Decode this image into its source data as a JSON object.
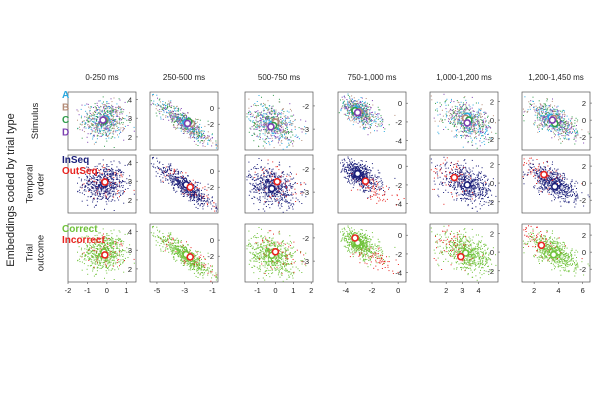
{
  "figure": {
    "ylabel": "Embeddings coded by trial type",
    "columns": [
      "0-250 ms",
      "250-500 ms",
      "500-750 ms",
      "750-1,000 ms",
      "1,000-1,200 ms",
      "1,200-1,450 ms"
    ],
    "rows": [
      {
        "label": [
          "Stimulus"
        ]
      },
      {
        "label": [
          "Temporal",
          "order"
        ]
      },
      {
        "label": [
          "Trial",
          "outcome"
        ]
      }
    ]
  },
  "legends": {
    "stimulus": [
      {
        "name": "A",
        "color": "#29a8df"
      },
      {
        "name": "B",
        "color": "#b48c78"
      },
      {
        "name": "C",
        "color": "#2e9c4a"
      },
      {
        "name": "D",
        "color": "#7b3fb0"
      }
    ],
    "temporal": [
      {
        "name": "InSeq",
        "color": "#1b1f7a"
      },
      {
        "name": "OutSeq",
        "color": "#e8231f"
      }
    ],
    "outcome": [
      {
        "name": "Correct",
        "color": "#6fc23a"
      },
      {
        "name": "Incorrect",
        "color": "#e8231f"
      }
    ]
  },
  "chart_data": {
    "type": "scatter",
    "columns": [
      {
        "title": "0-250 ms",
        "xlim": [
          -2,
          1.5
        ],
        "ylim": [
          1.3,
          4.4
        ],
        "xticks": [
          -2,
          -1,
          0,
          1
        ],
        "yticks": [
          2,
          3,
          4
        ],
        "cloud": {
          "cx": -0.15,
          "cy": 2.9,
          "sx": 0.55,
          "sy": 0.5,
          "rho": 0.0
        },
        "oos_shift": [
          0.0,
          0.0
        ],
        "centroids": {
          "stimulus": [
            [
              -0.05,
              2.95
            ],
            [
              -0.1,
              2.9
            ],
            [
              -0.15,
              2.85
            ],
            [
              -0.2,
              2.9
            ]
          ],
          "temporal": [
            [
              -0.15,
              2.85
            ],
            [
              -0.1,
              2.95
            ]
          ],
          "outcome": [
            [
              -0.15,
              2.9
            ],
            [
              -0.1,
              2.75
            ]
          ]
        }
      },
      {
        "title": "250-500 ms",
        "xlim": [
          -5.5,
          -0.6
        ],
        "ylim": [
          -5.2,
          2.0
        ],
        "xticks": [
          -5,
          -3,
          -1
        ],
        "yticks": [
          -2,
          0
        ],
        "cloud": {
          "cx": -3.0,
          "cy": -1.8,
          "sx": 1.0,
          "sy": 1.35,
          "rho": -0.88
        },
        "oos_shift": [
          0.6,
          -0.4
        ],
        "centroids": {
          "stimulus": [
            [
              -2.9,
              -1.8
            ],
            [
              -2.5,
              -1.9
            ],
            [
              -2.7,
              -1.7
            ],
            [
              -2.8,
              -1.9
            ]
          ],
          "temporal": [
            [
              -2.9,
              -1.7
            ],
            [
              -2.6,
              -2.0
            ]
          ],
          "outcome": [
            [
              -2.9,
              -1.8
            ],
            [
              -2.6,
              -2.1
            ]
          ]
        }
      },
      {
        "title": "500-750 ms",
        "xlim": [
          -1.7,
          2.1
        ],
        "ylim": [
          -3.9,
          -1.4
        ],
        "xticks": [
          -1,
          0,
          1,
          2
        ],
        "yticks": [
          -3,
          -2
        ],
        "cloud": {
          "cx": -0.2,
          "cy": -2.75,
          "sx": 0.65,
          "sy": 0.45,
          "rho": -0.3
        },
        "oos_shift": [
          0.4,
          0.3
        ],
        "centroids": {
          "stimulus": [
            [
              -0.2,
              -2.8
            ],
            [
              0.0,
              -2.7
            ],
            [
              -0.1,
              -2.85
            ],
            [
              -0.25,
              -2.9
            ]
          ],
          "temporal": [
            [
              -0.2,
              -2.85
            ],
            [
              0.1,
              -2.55
            ]
          ],
          "outcome": [
            [
              -0.2,
              -2.75
            ],
            [
              0.0,
              -2.6
            ]
          ]
        }
      },
      {
        "title": "750-1,000 ms",
        "xlim": [
          -4.6,
          0.6
        ],
        "ylim": [
          -5.0,
          1.2
        ],
        "xticks": [
          -4,
          -2,
          0
        ],
        "yticks": [
          -4,
          -2,
          0
        ],
        "cloud": {
          "cx": -3.0,
          "cy": -0.9,
          "sx": 0.75,
          "sy": 0.8,
          "rho": -0.6
        },
        "oos_shift": [
          1.4,
          -1.6
        ],
        "centroids": {
          "stimulus": [
            [
              -3.2,
              -0.7
            ],
            [
              -3.0,
              -0.9
            ],
            [
              -3.3,
              -0.8
            ],
            [
              -3.1,
              -1.0
            ]
          ],
          "temporal": [
            [
              -3.1,
              -0.8
            ],
            [
              -2.5,
              -1.6
            ]
          ],
          "outcome": [
            [
              -3.1,
              -0.8
            ],
            [
              -3.3,
              -0.3
            ]
          ]
        }
      },
      {
        "title": "1,000-1,200 ms",
        "xlim": [
          1.0,
          5.2
        ],
        "ylim": [
          -3.2,
          3.0
        ],
        "xticks": [
          2,
          3,
          4
        ],
        "yticks": [
          -2,
          0,
          2
        ],
        "cloud": {
          "cx": 3.3,
          "cy": -0.1,
          "sx": 0.75,
          "sy": 1.0,
          "rho": -0.4
        },
        "oos_shift": [
          -1.2,
          1.0
        ],
        "centroids": {
          "stimulus": [
            [
              3.3,
              0.4
            ],
            [
              3.2,
              0.2
            ],
            [
              3.4,
              0.0
            ],
            [
              3.3,
              -0.3
            ]
          ],
          "temporal": [
            [
              3.3,
              -0.2
            ],
            [
              2.5,
              0.6
            ]
          ],
          "outcome": [
            [
              3.2,
              -0.1
            ],
            [
              2.9,
              -0.5
            ]
          ]
        }
      },
      {
        "title": "1,200-1,450 ms",
        "xlim": [
          1.0,
          6.6
        ],
        "ylim": [
          -3.5,
          3.3
        ],
        "xticks": [
          2,
          4,
          6
        ],
        "yticks": [
          -2,
          0,
          2
        ],
        "cloud": {
          "cx": 3.6,
          "cy": 0.0,
          "sx": 0.95,
          "sy": 1.0,
          "rho": -0.6
        },
        "oos_shift": [
          -1.3,
          1.4
        ],
        "centroids": {
          "stimulus": [
            [
              3.4,
              0.3
            ],
            [
              3.6,
              0.2
            ],
            [
              3.7,
              -0.4
            ],
            [
              3.5,
              0.0
            ]
          ],
          "temporal": [
            [
              3.7,
              -0.4
            ],
            [
              2.8,
              1.0
            ]
          ],
          "outcome": [
            [
              3.6,
              -0.3
            ],
            [
              2.6,
              0.8
            ]
          ]
        }
      }
    ]
  }
}
